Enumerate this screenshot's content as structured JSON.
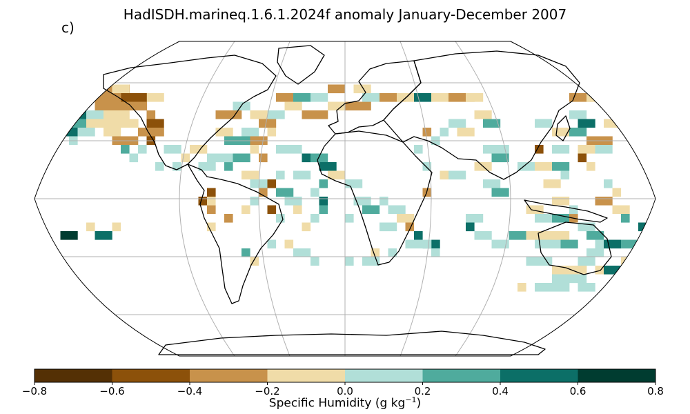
{
  "title": "HadISDH.marineq.1.6.1.2024f anomaly January-December 2007",
  "panel_label": "c)",
  "colorbar": {
    "label_main": "Specific Humidity (g kg",
    "label_exp": "−1",
    "label_end": ")",
    "ticks": [
      "−0.8",
      "−0.6",
      "−0.4",
      "−0.2",
      "0.0",
      "0.2",
      "0.4",
      "0.6",
      "0.8"
    ],
    "colors": [
      "#543005",
      "#8c510a",
      "#c8924b",
      "#f0dca8",
      "#b1dfd8",
      "#4fab9d",
      "#0c6f67",
      "#003c30"
    ]
  },
  "map": {
    "projection": "Robinson",
    "grid": true,
    "colors": [
      "#543005",
      "#8c510a",
      "#c8924b",
      "#f0dca8",
      "#b1dfd8",
      "#4fab9d",
      "#0c6f67",
      "#003c30"
    ]
  }
}
